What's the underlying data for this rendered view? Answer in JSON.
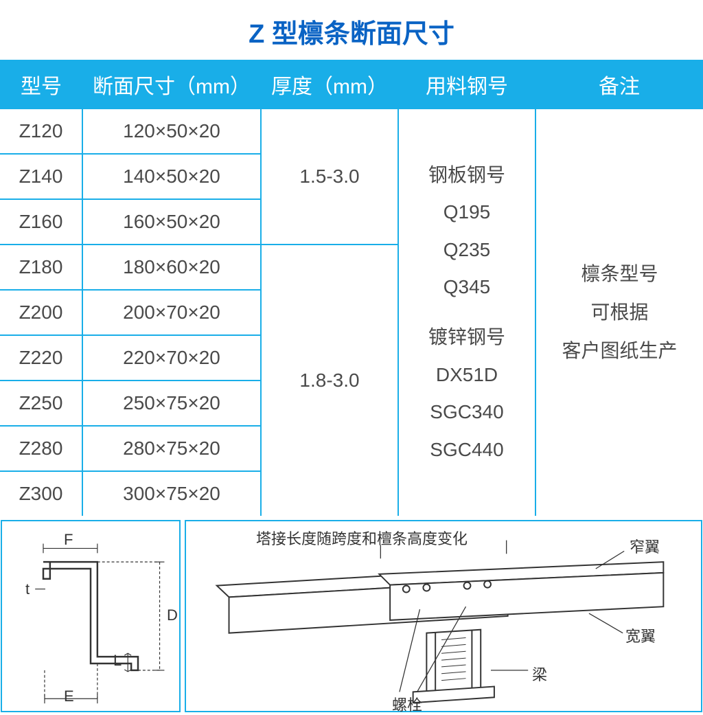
{
  "colors": {
    "title": "#0a63c4",
    "header_bg": "#19aee8",
    "header_text": "#ffffff",
    "border": "#19aee8",
    "cell_text": "#4a4a4a",
    "diag_border": "#19aee8"
  },
  "title": "Z 型檩条断面尺寸",
  "table": {
    "headers": [
      "型号",
      "断面尺寸（mm）",
      "厚度（mm）",
      "用料钢号",
      "备注"
    ],
    "rows": [
      {
        "model": "Z120",
        "dim": "120×50×20"
      },
      {
        "model": "Z140",
        "dim": "140×50×20"
      },
      {
        "model": "Z160",
        "dim": "160×50×20"
      },
      {
        "model": "Z180",
        "dim": "180×60×20"
      },
      {
        "model": "Z200",
        "dim": "200×70×20"
      },
      {
        "model": "Z220",
        "dim": "220×70×20"
      },
      {
        "model": "Z250",
        "dim": "250×75×20"
      },
      {
        "model": "Z280",
        "dim": "280×75×20"
      },
      {
        "model": "Z300",
        "dim": "300×75×20"
      }
    ],
    "thickness_groups": [
      {
        "value": "1.5-3.0",
        "row_start": 0,
        "row_span": 3
      },
      {
        "value": "1.8-3.0",
        "row_start": 3,
        "row_span": 6
      }
    ],
    "steel_grades": {
      "plate_label": "钢板钢号",
      "plate_grades": [
        "Q195",
        "Q235",
        "Q345"
      ],
      "galv_label": "镀锌钢号",
      "galv_grades": [
        "DX51D",
        "SGC340",
        "SGC440"
      ]
    },
    "remarks": [
      "檩条型号",
      "可根据",
      "客户图纸生产"
    ]
  },
  "diagrams": {
    "section": {
      "labels": {
        "F": "F",
        "t": "t",
        "D": "D",
        "L": "L",
        "E": "E"
      }
    },
    "assembly": {
      "title": "塔接长度随跨度和檀条高度变化",
      "labels": {
        "narrow_flange": "窄翼",
        "wide_flange": "宽翼",
        "beam": "梁",
        "bolt": "螺栓"
      }
    }
  }
}
